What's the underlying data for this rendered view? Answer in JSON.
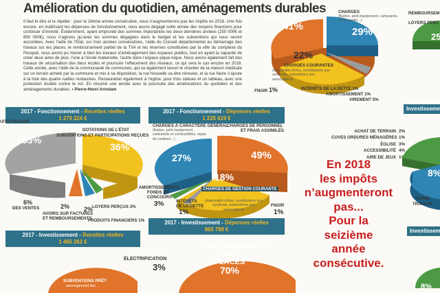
{
  "article": {
    "title": "Amélioration du quotidien, aménagements durables",
    "body": "Il faut le dire et le répéter : pour la 16ème année consécutive, nous n’augmenterons pas les impôts en 2018. Une fois encore, en maîtrisant les dépenses de fonctionnement, nous avons dégagé cette année des moyens financiers pour continuer d’investir. Évidemment, ayant emprunté des sommes importantes les deux dernières années (250 000€ et 850 000€), nous n’agirons qu’avec les sommes dégagées dans le budget et les subventions qui nous seront accordées. Avec l’aide de l’État, sur trois années consécutives, l’aide du Conseil départemental au démarrage des travaux sur les places, le remboursement partiel de la TVA et les réserves constituées par la ville du complexe du Pesquié, nous avons pu mener à bien les travaux d’aménagement des espaces publics, tout en ayant la capacité de créer deux aires de jeux, l’une à l’école maternelle, l’autre dans l’espace pique-nique. Nous avons également fait des travaux de sécurisation des deux écoles et poursuivi l’effacement des réseaux, ce qui sera le cas encore en 2018. Cette année, avec l’aide de la communauté de communes, qui va également lancer le chantier de la maison médicale sur un terrain acheté par la commune et mis à sa disposition, la rue Nouvelle va être rénovée, et la rue Noire s’ajoute à la liste des quatre ruelles restaurées. Restauration également à l’église, pour trois statues et un tableau, avec une protection double contre le vol. En résumé une année avec la poursuite des améliorations du quotidien et des aménagements durables.",
    "signature": "Pierre-Henri Arnstam"
  },
  "banners": {
    "fonct_recettes": {
      "prefix": "2017 - Fonctionnement - ",
      "highlight": "Recettes réelles",
      "amount": "1 270 224 €"
    },
    "fonct_depenses": {
      "prefix": "2017 - Fonctionnement - ",
      "highlight": "Dépenses réelles",
      "amount": "1 235 619 €"
    },
    "invest_recettes": {
      "prefix": "2017 - Investissement - ",
      "highlight": "Recettes réelles",
      "amount": "1 465 262 €"
    },
    "invest_depenses": {
      "prefix": "2017 - Investissement - ",
      "highlight": "Dépenses réelles",
      "amount": "965 798 €"
    },
    "invest_right": "Investissement",
    "invest_right2": "Investissement"
  },
  "recettes_fonct": {
    "labels": {
      "fiscaux": "UITS FISCAUX",
      "dotations": "DOTATIONS DE L’ÉTAT",
      "subventions": "SUBVENTIONS ET PARTICIPATIONS REÇUES",
      "ventes": "DES VENTES",
      "avoirs": "AVOIRS SUR FACTURES",
      "avoirs2": "ET REMBOURSEMENTS",
      "loyers": "LOYERS PERÇUS",
      "financiers": "PRODUITS FINANCIERS"
    },
    "pct": {
      "fiscaux": "53%",
      "dotations": "36%",
      "ventes": "6%",
      "avoirs": "2%",
      "loyers": "2%",
      "financiers": "1%"
    }
  },
  "depenses_fonct": {
    "labels": {
      "charges_gen": "CHARGES À CARACTÈRE GÉNÉRAL",
      "charges_gen_note": "(fluides, petit équipement, carburants et combustibles, repas de cantines...)",
      "personnel": "CHARGES DE PERSONNEL",
      "personnel2": "ET FRAIS ASSIMILÉS",
      "amort": "AMORTISSEMENTS",
      "amort2": "FONDS DE",
      "amort3": "CONCOURS",
      "interets": "INTÉRÊTS",
      "interets2": "DE LA DETTE",
      "gestion": "CHARGES DE GESTION COURANTE",
      "gestion_note": "(indemnités d’élus, contributions aux syndicats, subventions aux associations)",
      "fngir": "FNGIR"
    },
    "pct": {
      "charges_gen": "27%",
      "personnel": "49%",
      "gestion": "18%",
      "amort": "3%",
      "interets": "1%",
      "fngir": "1%"
    }
  },
  "top_pie": {
    "labels": {
      "personnel": "CHARGES DE PERSONNEL",
      "charges": "CHARGES",
      "charges_note": "(fluides, petit équipement, carburants, repas cantin...)",
      "courantes": "CHARGES COURANTES",
      "courantes_note": "(indemnités d’élus, contributions aux syndicats, subventions aux associations)",
      "fngir": "FNGIR",
      "interets": "INTÉRÊTS DE LA DETTE",
      "amort": "AMORTISSEMENT",
      "virement": "VIREMENT"
    },
    "pct": {
      "personnel": "41%",
      "charges": "29%",
      "courantes": "22%",
      "fngir": "1%",
      "interets": "1%",
      "amort": "1%",
      "virement": "5%"
    }
  },
  "right_list": {
    "items": [
      {
        "label": "ACHAT DE TERRAIN",
        "pct": "2%"
      },
      {
        "label": "CUVES ORDURES MÉNAGÈRES",
        "pct": "1%"
      },
      {
        "label": "ÉGLISE",
        "pct": "3%"
      },
      {
        "label": "ACCESSIBILITÉ",
        "pct": "4%"
      },
      {
        "label": "AIRE DE JEUX",
        "pct": "1%"
      }
    ],
    "top_labels": {
      "rembours": "REMBOURSEM",
      "loyers": "LOYERS PERÇ",
      "pct": "25"
    },
    "voirie": "VOIRIE",
    "voirie2": "TRAVAUX",
    "voirie_pct": "8%",
    "right_pct_bottom": "8%"
  },
  "callout": {
    "lines": [
      "En 2018",
      "les impôts",
      "n’augmenteront",
      "pas...",
      "Pour la",
      "seizième",
      "année",
      "consécutive."
    ]
  },
  "invest_recettes_pie": {
    "subventions": "SUBVENTIONS PRÊT",
    "subventions2": "aménagement des"
  },
  "invest_depenses_pie": {
    "electrification": "ÉLECTRIFICATION",
    "electrification_pct": "3%",
    "amenagement": "AMÉNAGEMENT",
    "amenagement2": "DES PLACES",
    "amenagement_pct": "70%"
  },
  "colors": {
    "banner": "#2e7188",
    "orange": "#e0742a",
    "blue": "#2f86b5",
    "yellow": "#f2c21e",
    "grey": "#9b9b9b",
    "green": "#4d9a45",
    "red": "#c81e1e"
  }
}
